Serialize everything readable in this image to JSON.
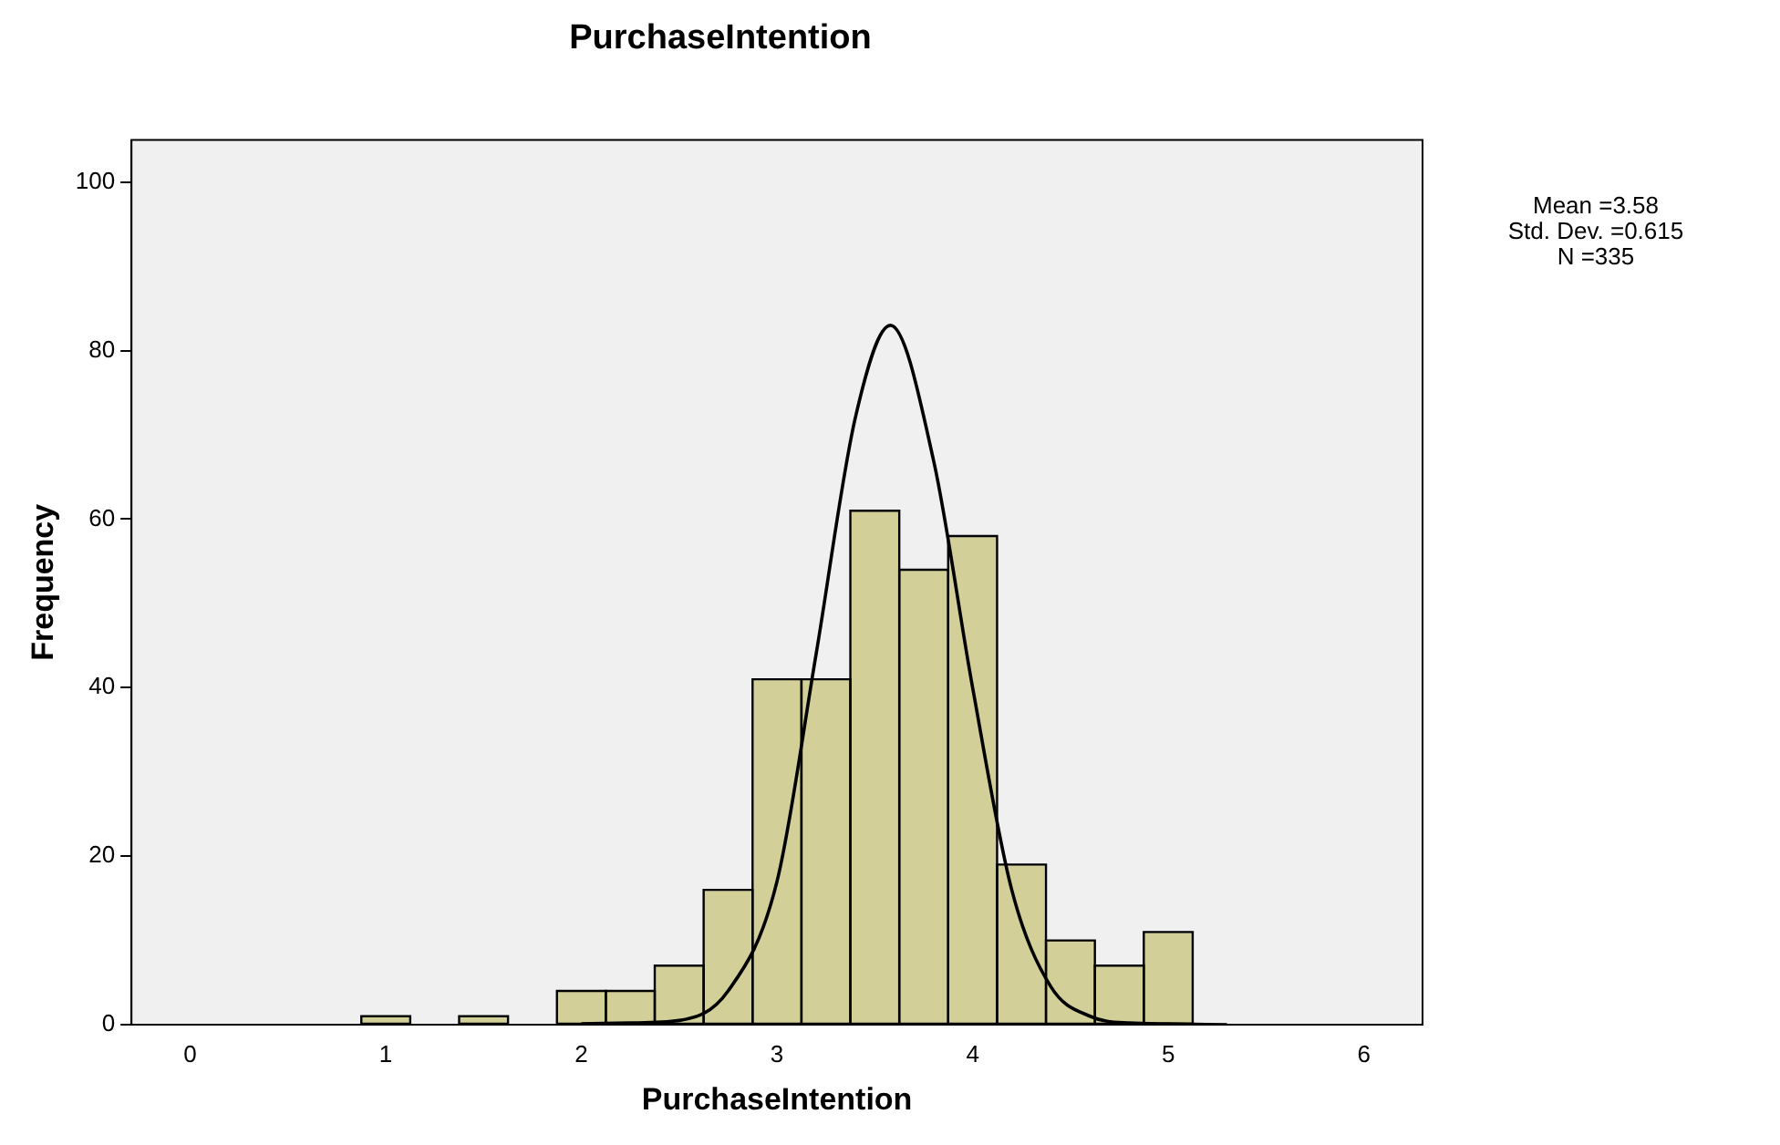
{
  "chart_data": {
    "type": "histogram",
    "title": "PurchaseIntention",
    "xlabel": "PurchaseIntention",
    "ylabel": "Frequency",
    "bins": [
      0.875,
      1.125,
      1.375,
      1.625,
      1.875,
      2.125,
      2.375,
      2.625,
      2.875,
      3.125,
      3.375,
      3.625,
      3.875,
      4.125,
      4.375,
      4.625,
      4.875,
      5.125
    ],
    "values": [
      1,
      0,
      1,
      0,
      4,
      4,
      7,
      16,
      41,
      41,
      61,
      54,
      58,
      19,
      10,
      7,
      11
    ],
    "color": "#d3cf98",
    "series": [
      {
        "type": "line",
        "color": "#000000",
        "x": [
          2.0,
          2.25,
          2.5,
          2.75,
          3.0,
          3.2,
          3.4,
          3.58,
          3.8,
          4.0,
          4.2,
          4.4,
          4.6,
          4.8,
          5.0,
          5.3
        ],
        "values": [
          0.1,
          0.2,
          0.5,
          4,
          17,
          44,
          72,
          83,
          67,
          40,
          16,
          4.5,
          1,
          0.2,
          0.1,
          0
        ]
      }
    ],
    "xlim": [
      -0.3,
      6.3
    ],
    "xticks": [
      0,
      1,
      2,
      3,
      4,
      5,
      6
    ],
    "ylim": [
      0,
      105
    ],
    "yticks": [
      0,
      20,
      40,
      60,
      80,
      100
    ],
    "grid": false,
    "legend": false,
    "annotations": [
      "Mean =3.58",
      "Std. Dev. =0.615",
      "N =335"
    ]
  }
}
